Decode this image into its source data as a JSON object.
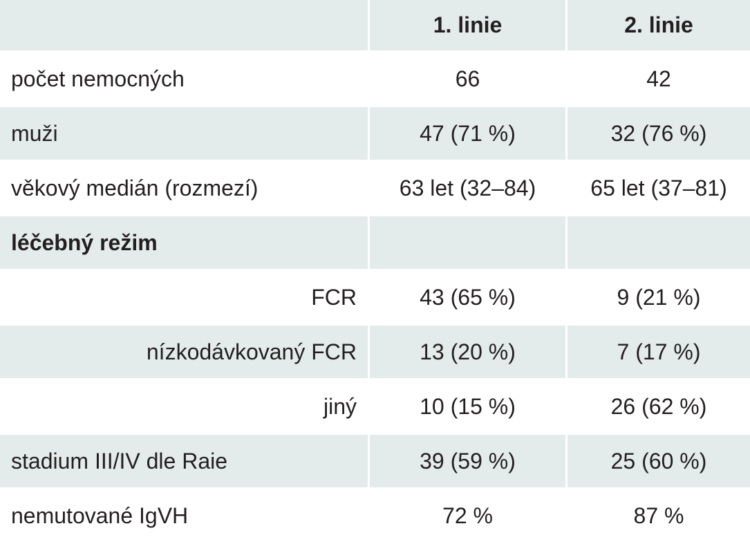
{
  "header": {
    "col0": "",
    "col1": "1. linie",
    "col2": "2. linie"
  },
  "rows": [
    {
      "label": "počet nemocných",
      "l1": "66",
      "l2": "42"
    },
    {
      "label": "muži",
      "l1": "47 (71 %)",
      "l2": "32 (76 %)"
    },
    {
      "label": "věkový medián (rozmezí)",
      "l1": "63 let (32–84)",
      "l2": "65 let (37–81)"
    },
    {
      "label": "léčebný režim",
      "l1": "",
      "l2": ""
    },
    {
      "label": "FCR",
      "l1": "43 (65 %)",
      "l2": "9 (21 %)"
    },
    {
      "label": "nízkodávkovaný FCR",
      "l1": "13 (20 %)",
      "l2": "7 (17 %)"
    },
    {
      "label": "jiný",
      "l1": "10 (15 %)",
      "l2": "26 (62 %)"
    },
    {
      "label": "stadium III/IV dle Raie",
      "l1": "39 (59 %)",
      "l2": "25 (60 %)"
    },
    {
      "label": "nemutované IgVH",
      "l1": "72 %",
      "l2": "87 %"
    }
  ],
  "colors": {
    "shade": "#e3ecea",
    "text": "#231f20"
  }
}
